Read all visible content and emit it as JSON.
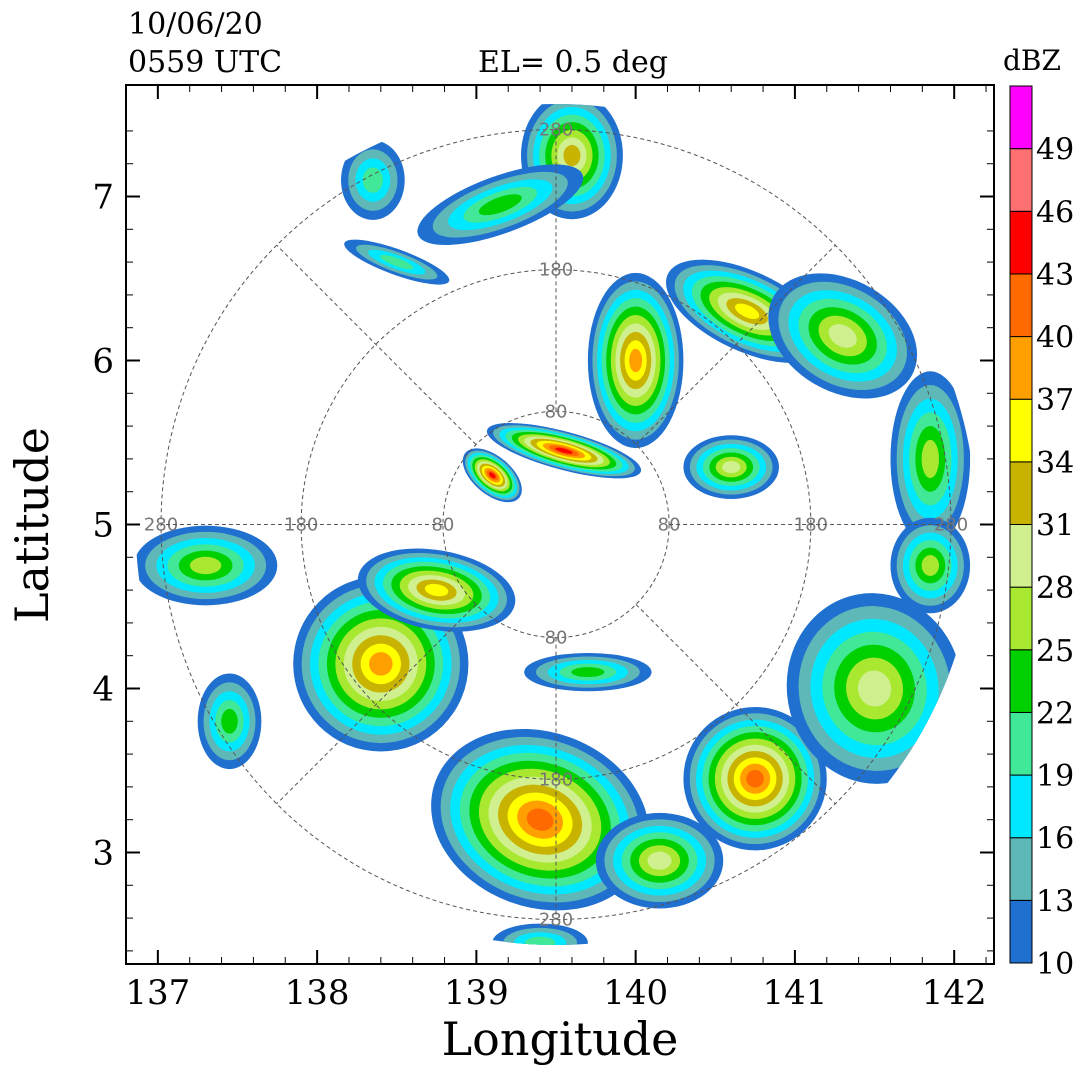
{
  "header": {
    "date": "10/06/20",
    "time": "0559 UTC",
    "elevation": "EL=  0.5 deg",
    "colorbar_unit": "dBZ"
  },
  "chart_data": {
    "type": "heatmap",
    "title": "",
    "xlabel": "Longitude",
    "ylabel": "Latitude",
    "xlim": [
      136.8,
      142.25
    ],
    "ylim": [
      2.32,
      7.68
    ],
    "x_ticks": [
      137,
      138,
      139,
      140,
      141,
      142
    ],
    "y_ticks": [
      3,
      4,
      5,
      6,
      7
    ],
    "radar_center": {
      "lon": 139.5,
      "lat": 5.0
    },
    "range_ring_labels": [
      "80",
      "180",
      "280"
    ],
    "range_rings_deg": [
      0.71,
      1.6,
      2.48
    ],
    "max_range_deg": 2.64,
    "colorbar": {
      "levels": [
        10,
        13,
        16,
        19,
        22,
        25,
        28,
        31,
        34,
        37,
        40,
        43,
        46,
        49
      ],
      "colors": [
        "#2070d0",
        "#5fb8b8",
        "#00e8ff",
        "#40e898",
        "#00d000",
        "#a8e830",
        "#d0f090",
        "#c8b400",
        "#ffff00",
        "#ffa000",
        "#ff6a00",
        "#ff0000",
        "#ff7070",
        "#ff00ff"
      ]
    },
    "echo_regions": [
      {
        "lon": 139.6,
        "lat": 7.25,
        "rx": 0.32,
        "ry": 0.4,
        "peak": 31,
        "theta": 0
      },
      {
        "lon": 139.15,
        "lat": 6.95,
        "rx": 0.55,
        "ry": 0.18,
        "peak": 22,
        "theta": 20
      },
      {
        "lon": 138.35,
        "lat": 7.1,
        "rx": 0.2,
        "ry": 0.25,
        "peak": 19,
        "theta": 0
      },
      {
        "lon": 138.5,
        "lat": 6.6,
        "rx": 0.35,
        "ry": 0.08,
        "peak": 19,
        "theta": -20
      },
      {
        "lon": 140.0,
        "lat": 6.0,
        "rx": 0.3,
        "ry": 0.55,
        "peak": 37,
        "theta": 0
      },
      {
        "lon": 140.7,
        "lat": 6.3,
        "rx": 0.55,
        "ry": 0.25,
        "peak": 34,
        "theta": -25
      },
      {
        "lon": 141.3,
        "lat": 6.15,
        "rx": 0.5,
        "ry": 0.35,
        "peak": 28,
        "theta": -30
      },
      {
        "lon": 141.85,
        "lat": 5.4,
        "rx": 0.25,
        "ry": 0.55,
        "peak": 25,
        "theta": 0
      },
      {
        "lon": 139.55,
        "lat": 5.45,
        "rx": 0.5,
        "ry": 0.12,
        "peak": 43,
        "theta": -15
      },
      {
        "lon": 139.1,
        "lat": 5.3,
        "rx": 0.22,
        "ry": 0.12,
        "peak": 43,
        "theta": -40
      },
      {
        "lon": 140.6,
        "lat": 5.35,
        "rx": 0.3,
        "ry": 0.2,
        "peak": 28,
        "theta": 0
      },
      {
        "lon": 137.3,
        "lat": 4.75,
        "rx": 0.45,
        "ry": 0.25,
        "peak": 25,
        "theta": 0
      },
      {
        "lon": 137.45,
        "lat": 3.8,
        "rx": 0.2,
        "ry": 0.3,
        "peak": 22,
        "theta": 0
      },
      {
        "lon": 138.4,
        "lat": 4.15,
        "rx": 0.55,
        "ry": 0.55,
        "peak": 37,
        "theta": 0
      },
      {
        "lon": 138.75,
        "lat": 4.6,
        "rx": 0.5,
        "ry": 0.25,
        "peak": 34,
        "theta": -10
      },
      {
        "lon": 139.4,
        "lat": 3.2,
        "rx": 0.7,
        "ry": 0.55,
        "peak": 40,
        "theta": -20
      },
      {
        "lon": 140.15,
        "lat": 2.95,
        "rx": 0.4,
        "ry": 0.3,
        "peak": 28,
        "theta": 0
      },
      {
        "lon": 140.75,
        "lat": 3.45,
        "rx": 0.45,
        "ry": 0.45,
        "peak": 40,
        "theta": 0
      },
      {
        "lon": 141.5,
        "lat": 4.0,
        "rx": 0.55,
        "ry": 0.6,
        "peak": 28,
        "theta": 10
      },
      {
        "lon": 141.85,
        "lat": 4.75,
        "rx": 0.25,
        "ry": 0.3,
        "peak": 25,
        "theta": 0
      },
      {
        "lon": 139.7,
        "lat": 4.1,
        "rx": 0.4,
        "ry": 0.12,
        "peak": 22,
        "theta": 0
      },
      {
        "lon": 139.4,
        "lat": 2.45,
        "rx": 0.3,
        "ry": 0.12,
        "peak": 19,
        "theta": 0
      }
    ]
  }
}
